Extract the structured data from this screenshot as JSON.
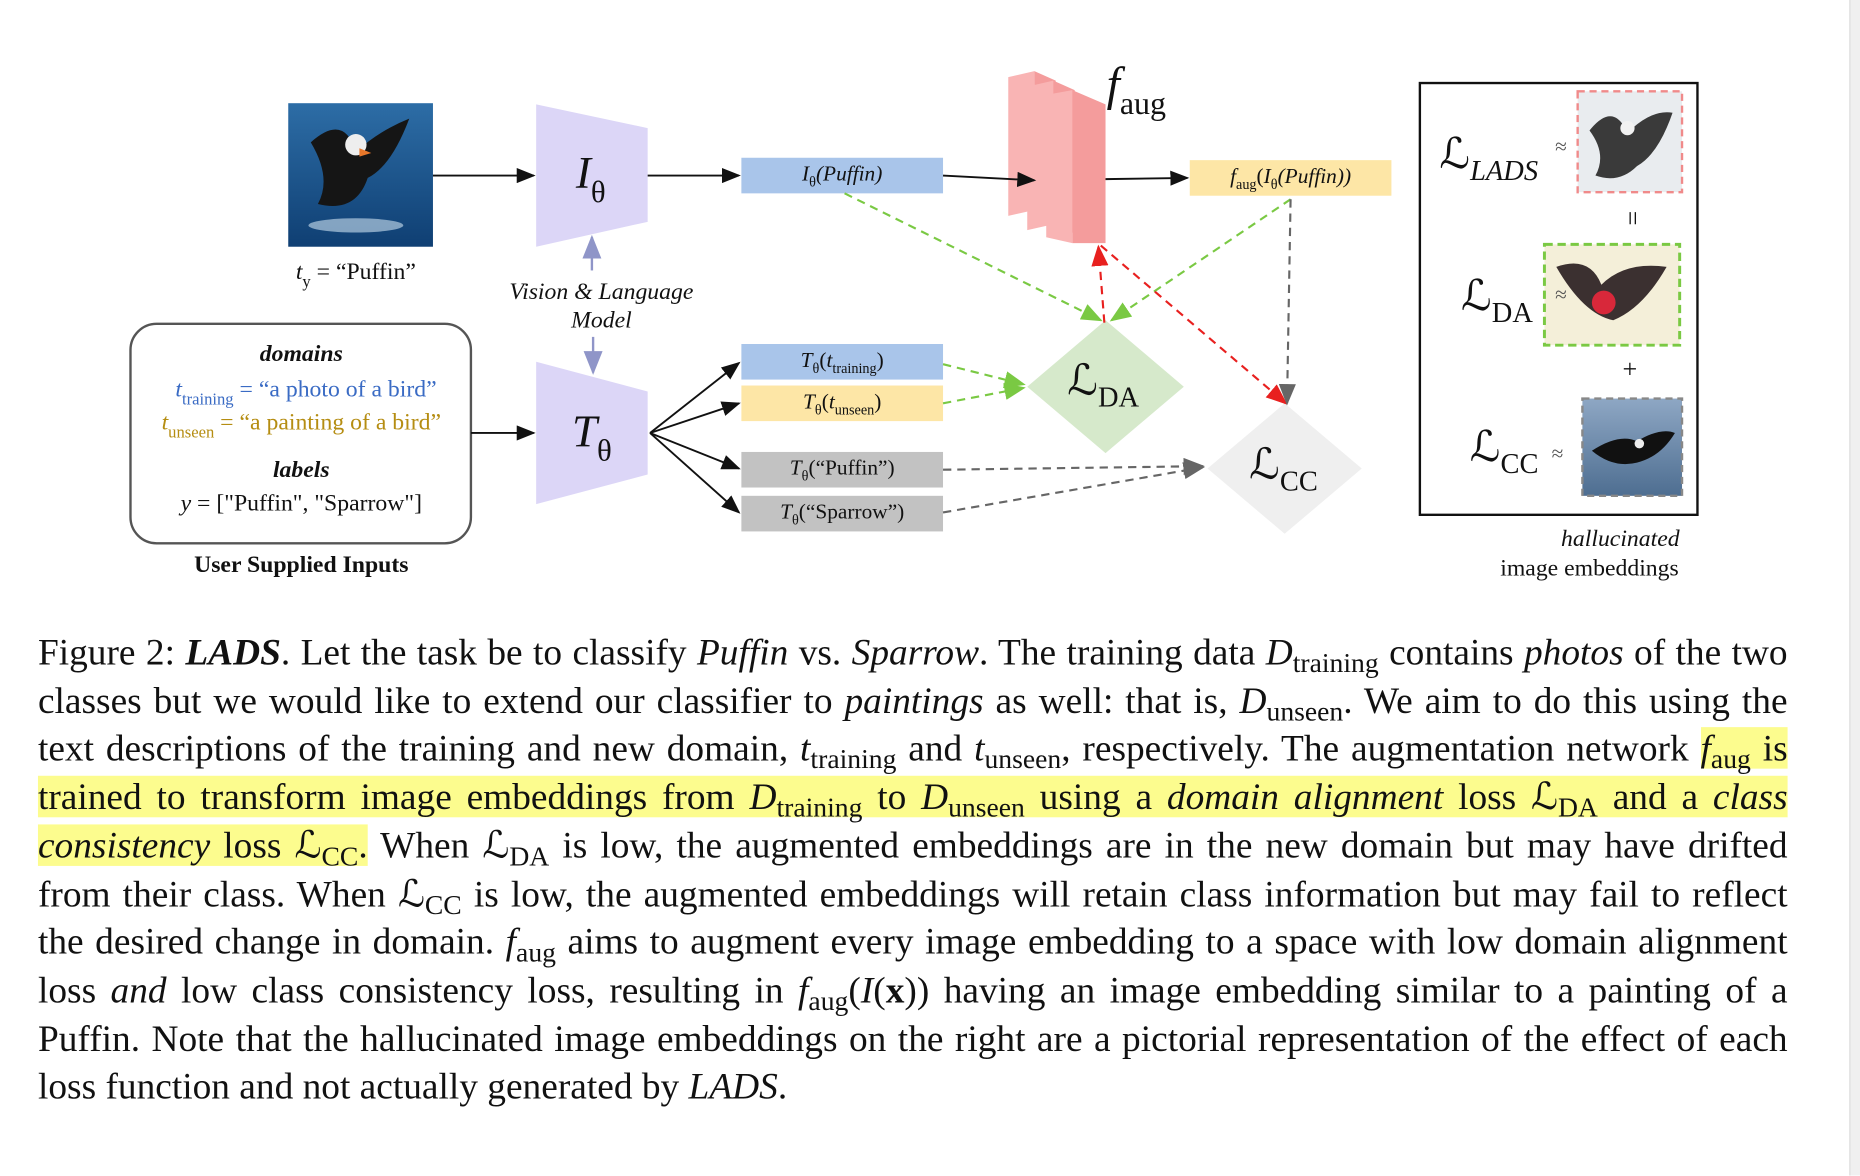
{
  "figure": {
    "query_label": [
      "t",
      "y",
      " = “Puffin”"
    ],
    "image_encoder": [
      "I",
      "θ"
    ],
    "text_encoder": [
      "T",
      "θ"
    ],
    "model_label_1": [
      "Vision & Language"
    ],
    "model_label_2": [
      "Model"
    ],
    "domains_heading": [
      "domains"
    ],
    "t_training": [
      "t",
      "training",
      " = “a photo of a bird”"
    ],
    "t_unseen": [
      "t",
      "unseen",
      " = “a painting of a bird”"
    ],
    "labels_heading": [
      "labels"
    ],
    "labels": [
      "y",
      " = [\"Puffin\", \"Sparrow\"]"
    ],
    "inputs_caption": [
      "User Supplied Inputs"
    ],
    "image_embedding": [
      "I",
      "θ",
      "(Puffin)"
    ],
    "augmenter": [
      "f",
      "aug"
    ],
    "augmented_embedding": [
      "f",
      "aug",
      "(",
      "I",
      "θ",
      "(Puffin))"
    ],
    "text_training": [
      "T",
      "θ",
      "(",
      "t",
      "training",
      ")"
    ],
    "text_unseen": [
      "T",
      "θ",
      "(",
      "t",
      "unseen",
      ")"
    ],
    "text_puffin": [
      "T",
      "θ",
      "(“Puffin”)"
    ],
    "text_sparrow": [
      "T",
      "θ",
      "(“Sparrow”)"
    ],
    "loss_da": [
      "ℒ",
      "DA"
    ],
    "loss_cc": [
      "ℒ",
      "CC"
    ],
    "panel_lads": [
      "ℒ",
      "LADS"
    ],
    "panel_da": [
      "ℒ",
      "DA"
    ],
    "panel_cc": [
      "ℒ",
      "CC"
    ],
    "approx_1": [
      "≈"
    ],
    "approx_2": [
      "≈"
    ],
    "approx_3": [
      "≈"
    ],
    "equals": [
      "="
    ],
    "plus": [
      "+"
    ],
    "hallucinated": [
      "hallucinated"
    ],
    "image_embeddings": [
      "image embeddings"
    ]
  },
  "caption": [
    "Figure 2: ",
    "LADS",
    ". Let the task be to classify ",
    "Puffin",
    " vs. ",
    "Sparrow",
    ". The training data ",
    "D",
    "training",
    " contains ",
    "photos",
    " of the two classes but we would like to extend our classifier to ",
    "paintings",
    " as well: that is, ",
    "D",
    "unseen",
    ". We aim to do this using the text descriptions of the training and new domain, ",
    "t",
    "training",
    " and ",
    "t",
    "unseen",
    ", respectively. The augmentation network ",
    "f",
    "aug",
    " is trained to transform image embeddings from ",
    "D",
    "training",
    " to ",
    "D",
    "unseen",
    " using a ",
    "domain alignment",
    " loss ",
    "ℒ",
    "DA",
    " and a ",
    "class consistency",
    " loss ",
    "ℒ",
    "CC",
    ".",
    " When ",
    "ℒ",
    "DA",
    " is low, the augmented embeddings are in the new domain but may have drifted from their class. When ",
    "ℒ",
    "CC",
    " is low, the augmented embeddings will retain class information but may fail to reflect the desired change in domain. ",
    "f",
    "aug",
    " aims to augment every image embedding to a space with low domain alignment loss ",
    "and",
    " low class consistency loss, resulting in ",
    "f",
    "aug",
    "(",
    "I",
    "(",
    "x",
    ")) having an image embedding similar to a painting of a Puffin. Note that the hallucinated image embeddings on the right are a pictorial representation of the effect of each loss function and not actually generated by ",
    "LADS",
    "."
  ]
}
